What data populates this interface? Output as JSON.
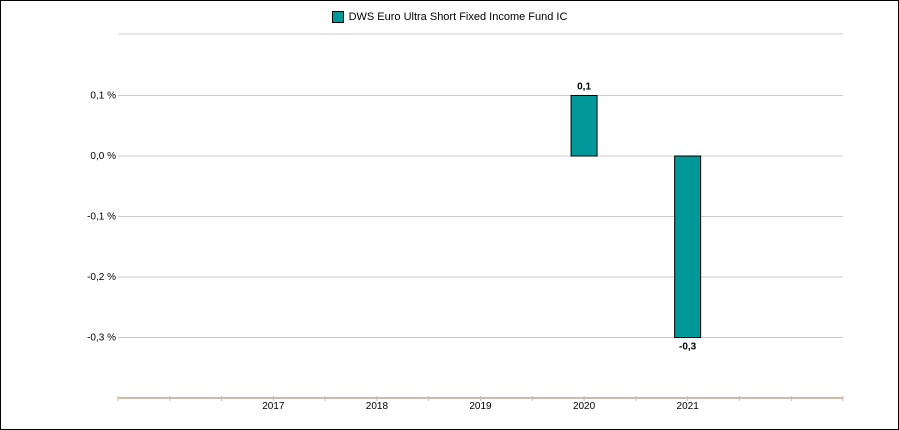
{
  "chart_data": {
    "type": "bar",
    "categories": [
      "",
      "2017",
      "2018",
      "2019",
      "2020",
      "2021",
      ""
    ],
    "series": [
      {
        "name": "DWS Euro Ultra Short Fixed Income Fund  IC",
        "values": [
          null,
          null,
          null,
          null,
          0.1,
          -0.3,
          null
        ],
        "color": "#009999"
      }
    ],
    "data_labels": [
      "",
      "",
      "",
      "",
      "0,1",
      "-0,3",
      ""
    ],
    "y_ticks": [
      {
        "value": 0.1,
        "label": "0,1 %"
      },
      {
        "value": 0.0,
        "label": "0,0 %"
      },
      {
        "value": -0.1,
        "label": "-0,1 %"
      },
      {
        "value": -0.2,
        "label": "-0,2 %"
      },
      {
        "value": -0.3,
        "label": "-0,3 %"
      }
    ],
    "ylim": [
      -0.4,
      0.2
    ],
    "grid": true,
    "legend_position": "top-center",
    "gridline_color": "#cccccc",
    "axis_color": "#ccbbaa"
  }
}
